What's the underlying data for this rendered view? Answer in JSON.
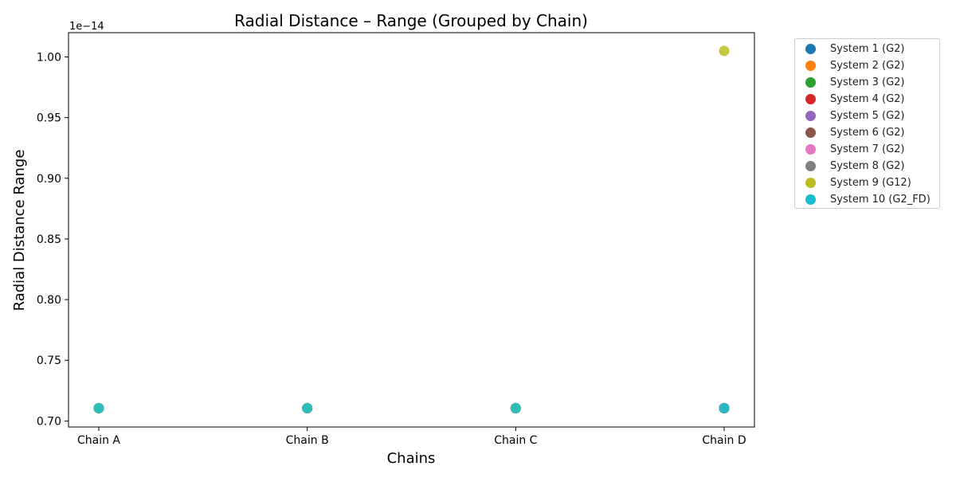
{
  "chart_data": {
    "type": "scatter",
    "title": "Radial Distance – Range (Grouped by Chain)",
    "xlabel": "Chains",
    "ylabel": "Radial Distance Range",
    "offset_label": "1e−14",
    "categories": [
      "Chain A",
      "Chain B",
      "Chain C",
      "Chain D"
    ],
    "ylim": [
      0.695,
      1.02
    ],
    "yticks": [
      0.7,
      0.75,
      0.8,
      0.85,
      0.9,
      0.95,
      1.0
    ],
    "ytick_labels": [
      "0.70",
      "0.75",
      "0.80",
      "0.85",
      "0.90",
      "0.95",
      "1.00"
    ],
    "grid": false,
    "legend_placement": "outside-right",
    "series": [
      {
        "name": "System 1 (G2)",
        "color": "#1f77b4",
        "values": [
          0.7105,
          0.7105,
          0.7105,
          0.7105
        ]
      },
      {
        "name": "System 2 (G2)",
        "color": "#ff7f0e",
        "values": [
          0.7105,
          0.7105,
          0.7105,
          0.7105
        ]
      },
      {
        "name": "System 3 (G2)",
        "color": "#2ca02c",
        "values": [
          0.7105,
          0.7105,
          0.7105,
          0.7105
        ]
      },
      {
        "name": "System 4 (G2)",
        "color": "#d62728",
        "values": [
          0.7105,
          0.7105,
          0.7105,
          0.7105
        ]
      },
      {
        "name": "System 5 (G2)",
        "color": "#9467bd",
        "values": [
          0.7105,
          0.7105,
          0.7105,
          0.7105
        ]
      },
      {
        "name": "System 6 (G2)",
        "color": "#8c564b",
        "values": [
          0.7105,
          0.7105,
          0.7105,
          0.7105
        ]
      },
      {
        "name": "System 7 (G2)",
        "color": "#e377c2",
        "values": [
          0.7105,
          0.7105,
          0.7105,
          0.7105
        ]
      },
      {
        "name": "System 8 (G2)",
        "color": "#7f7f7f",
        "values": [
          0.7105,
          0.7105,
          0.7105,
          0.7105
        ]
      },
      {
        "name": "System 9 (G12)",
        "color": "#bcbd22",
        "values": [
          0.7105,
          0.7105,
          0.7105,
          1.005
        ]
      },
      {
        "name": "System 10 (G2_FD)",
        "color": "#17becf",
        "values": [
          0.7105,
          0.7105,
          0.7105,
          0.7105
        ]
      }
    ]
  }
}
